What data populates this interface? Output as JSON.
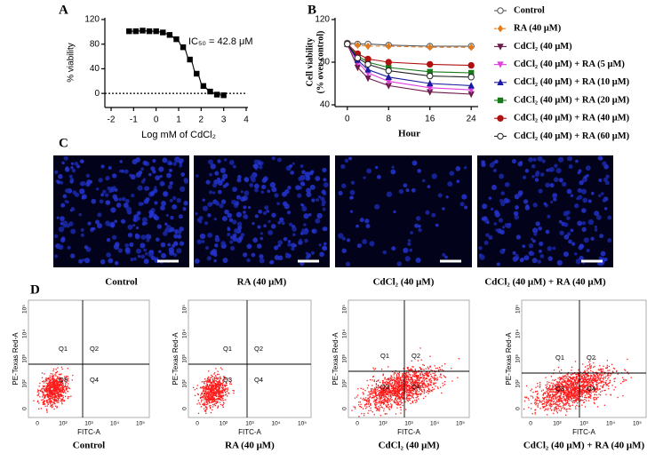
{
  "chart_data": [
    {
      "type": "scatter",
      "panel": "A",
      "ylabel": "% viability",
      "xlabel": "Log mM of CdCl₂",
      "annotation": "IC₅₀ = 42.8 μM",
      "x": [
        -1.2,
        -0.9,
        -0.6,
        -0.3,
        0,
        0.3,
        0.6,
        0.9,
        1.2,
        1.5,
        1.8,
        2.1,
        2.4,
        2.7,
        3.0
      ],
      "values": [
        101,
        101,
        102,
        101,
        101,
        99,
        95,
        88,
        75,
        55,
        32,
        12,
        3,
        -2,
        -3
      ],
      "color": "#000000",
      "xlim": [
        -2,
        4
      ],
      "xticks": [
        -2,
        -1,
        0,
        1,
        2,
        3,
        4
      ],
      "ylim": [
        -20,
        120
      ],
      "yticks": [
        0,
        40,
        80,
        120
      ],
      "reference_line": 0
    },
    {
      "type": "line",
      "panel": "B",
      "ylabel": [
        "Cell viability",
        "(% over control)"
      ],
      "xlabel": "Hour",
      "x": [
        0,
        2,
        4,
        8,
        16,
        24
      ],
      "xlim": [
        -1,
        25
      ],
      "xticks": [
        0,
        8,
        16,
        24
      ],
      "ylim": [
        40,
        120
      ],
      "yticks": [
        40,
        80,
        120
      ],
      "series": [
        {
          "name": "Control",
          "color": "#555555",
          "marker": "circle-open",
          "values": [
            98,
            97,
            97,
            96,
            95,
            95
          ]
        },
        {
          "name": "RA (40 μM)",
          "color": "#e07b20",
          "marker": "diamond",
          "linestyle": "dashed",
          "values": [
            97,
            96,
            95,
            95,
            94,
            94
          ]
        },
        {
          "name": "CdCl₂ (40 μM)",
          "color": "#6b1a4a",
          "marker": "triangle-down",
          "values": [
            97,
            75,
            65,
            58,
            52,
            50
          ]
        },
        {
          "name": "CdCl₂ (40 μM) + RA (5 μM)",
          "color": "#e040e0",
          "marker": "triangle-down",
          "values": [
            97,
            80,
            70,
            62,
            56,
            54
          ]
        },
        {
          "name": "CdCl₂ (40 μM) + RA (10 μM)",
          "color": "#1a1aa0",
          "marker": "triangle",
          "values": [
            97,
            82,
            73,
            66,
            60,
            58
          ]
        },
        {
          "name": "CdCl₂ (40 μM) + RA (20 μM)",
          "color": "#1a7a1a",
          "marker": "square",
          "values": [
            97,
            86,
            80,
            75,
            71,
            70
          ]
        },
        {
          "name": "CdCl₂ (40 μM) + RA (40 μM)",
          "color": "#b01010",
          "marker": "circle",
          "values": [
            97,
            88,
            83,
            80,
            78,
            77
          ]
        },
        {
          "name": "CdCl₂ (40 μM) + RA (60 μM)",
          "color": "#222222",
          "marker": "circle-open",
          "values": [
            97,
            84,
            78,
            72,
            67,
            66
          ]
        }
      ]
    }
  ],
  "panel_c": {
    "label": "C",
    "captions": [
      "Control",
      "RA (40 μM)",
      "CdCl₂ (40 μM)",
      "CdCl₂ (40 μM) + RA (40 μM)"
    ]
  },
  "panel_d": {
    "label": "D",
    "y_axis_label": "PE-Texas Red-A",
    "x_axis_label": "FITC-A",
    "ticks": [
      "0",
      "10²",
      "10³",
      "10⁴",
      "10⁵"
    ],
    "quadrants": [
      "Q1",
      "Q2",
      "Q3",
      "Q4"
    ],
    "captions": [
      "Control",
      "RA (40 μM)",
      "CdCl₂ (40 μM)",
      "CdCl₂ (40 μM) + RA (40 μM)"
    ]
  }
}
